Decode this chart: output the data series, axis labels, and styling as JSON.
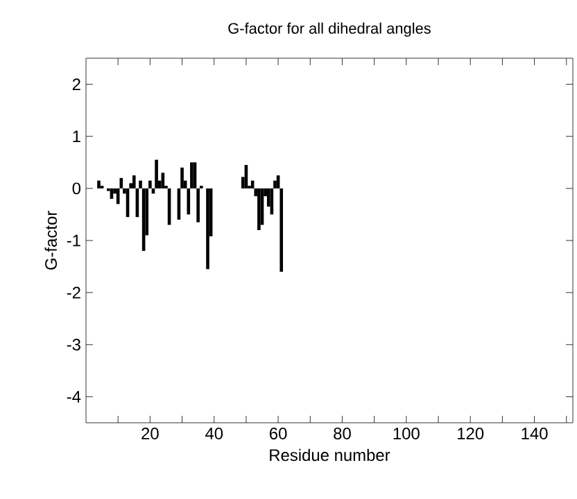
{
  "chart_data": {
    "type": "bar",
    "title": "G-factor for all dihedral angles",
    "xlabel": "Residue number",
    "ylabel": "G-factor",
    "x": [
      4,
      5,
      6,
      7,
      8,
      9,
      10,
      11,
      12,
      13,
      14,
      15,
      16,
      17,
      18,
      19,
      20,
      21,
      22,
      23,
      24,
      25,
      26,
      27,
      28,
      29,
      30,
      31,
      32,
      33,
      34,
      35,
      36,
      37,
      38,
      39,
      49,
      50,
      51,
      52,
      53,
      54,
      55,
      56,
      57,
      58,
      59,
      60,
      61
    ],
    "values": [
      0.15,
      0.05,
      0,
      -0.05,
      -0.2,
      -0.1,
      -0.3,
      0.2,
      -0.1,
      -0.55,
      0.1,
      0.25,
      -0.55,
      0.15,
      -1.2,
      -0.9,
      0.15,
      -0.1,
      0.55,
      0.15,
      0.3,
      0.05,
      -0.7,
      0,
      0,
      -0.6,
      0.4,
      0.15,
      -0.5,
      0.5,
      0.5,
      -0.65,
      0.05,
      0,
      -1.55,
      -0.92,
      0.22,
      0.45,
      0.05,
      0.15,
      -0.15,
      -0.8,
      -0.7,
      -0.15,
      -0.35,
      -0.5,
      0.15,
      0.25,
      -1.6
    ],
    "color": "#000000",
    "xlim": [
      0,
      152
    ],
    "ylim": [
      -4.5,
      2.5
    ],
    "xticks": [
      {
        "value": 10,
        "label": null
      },
      20,
      {
        "value": 30,
        "label": null
      },
      40,
      {
        "value": 50,
        "label": null
      },
      60,
      {
        "value": 70,
        "label": null
      },
      80,
      {
        "value": 90,
        "label": null
      },
      100,
      {
        "value": 110,
        "label": null
      },
      120,
      {
        "value": 130,
        "label": null
      },
      140,
      {
        "value": 150,
        "label": null
      }
    ],
    "yticks": [
      -4,
      -3,
      -2,
      -1,
      0,
      1,
      2
    ],
    "grid": false
  }
}
